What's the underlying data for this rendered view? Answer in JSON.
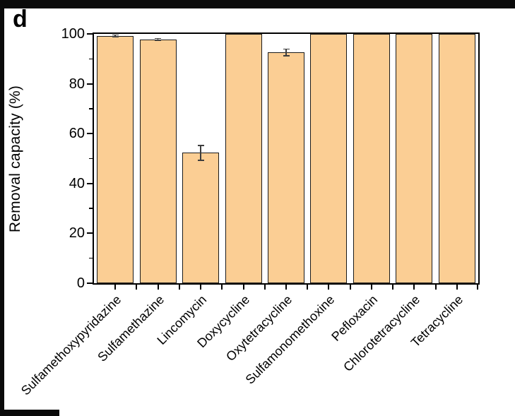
{
  "figure": {
    "panel_label": "d"
  },
  "chart_data": {
    "type": "bar",
    "title": "",
    "ylabel": "Removal capacity (%)",
    "xlabel": "",
    "ylim": [
      0,
      100
    ],
    "yticks": [
      0,
      20,
      40,
      60,
      80,
      100
    ],
    "y_minor_ticks": [
      10,
      30,
      50,
      70,
      90
    ],
    "categories": [
      "Sulfamethoxypyridazine",
      "Sulfamethazine",
      "Lincomycin",
      "Doxycycline",
      "Oxytetracycline",
      "Sulfamonomethoxine",
      "Pefloxacin",
      "Chlorotetracycline",
      "Tetracycline"
    ],
    "values": [
      99.2,
      97.8,
      52.3,
      100,
      92.6,
      100,
      100,
      100,
      100
    ],
    "errors": [
      0.4,
      0.4,
      3.0,
      0,
      1.3,
      0,
      0,
      0,
      0
    ],
    "bar_color": "#FBCE94",
    "bar_edge_color": "#1a1a1a",
    "axis_color": "#000000",
    "grid": "off",
    "legend": "none"
  }
}
